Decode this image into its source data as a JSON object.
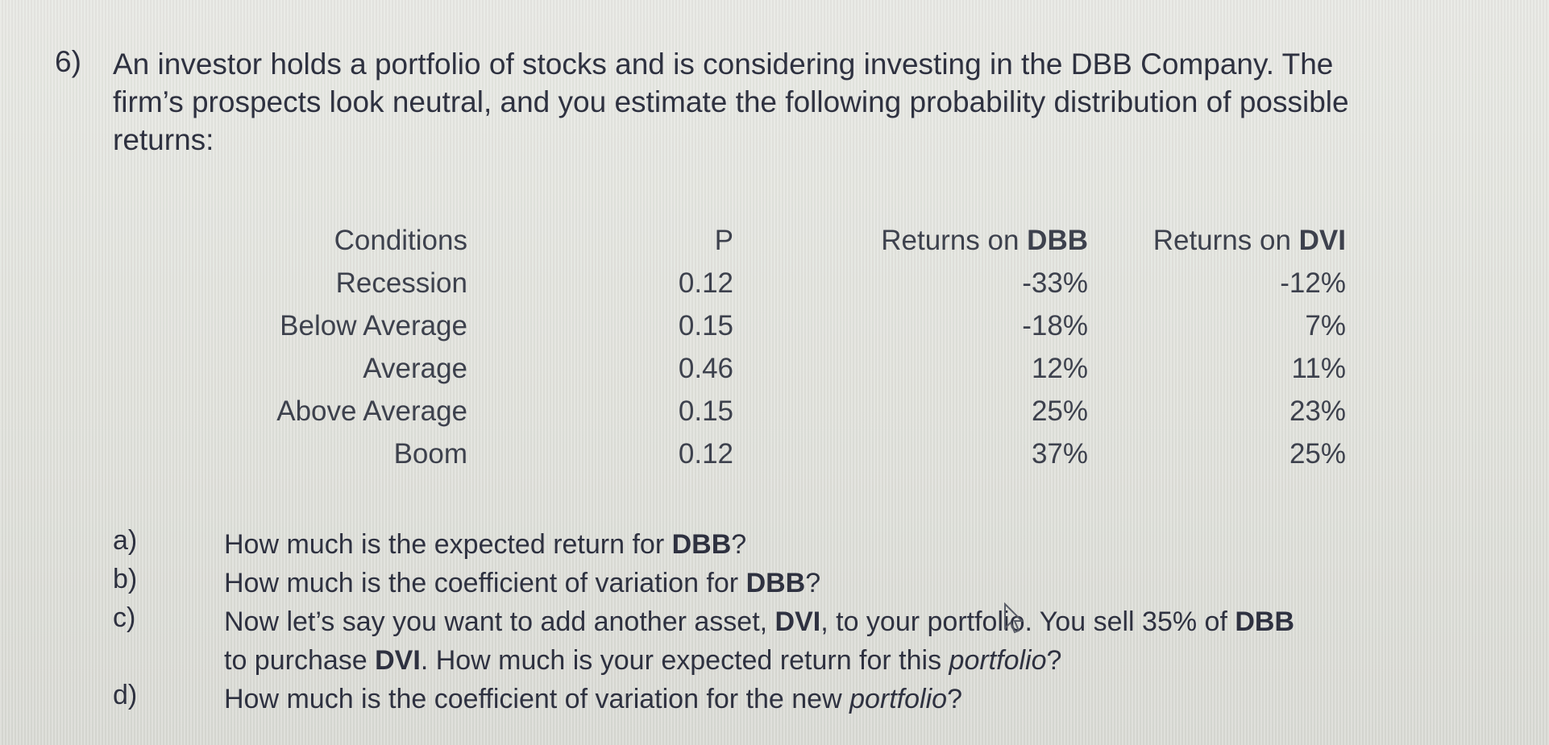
{
  "question": {
    "number": "6)",
    "lines": [
      "An investor holds a portfolio of stocks and is considering investing in the DBB Company.  The",
      "firm’s prospects look neutral, and you estimate the following probability distribution of possible",
      "returns:"
    ]
  },
  "table": {
    "headers": {
      "conditions": "Conditions",
      "p": "P",
      "dbb_prefix": "Returns on ",
      "dbb_name": "DBB",
      "dvi_prefix": "Returns on ",
      "dvi_name": "DVI"
    },
    "rows": [
      {
        "condition": "Recession",
        "p": "0.12",
        "dbb": "-33%",
        "dvi": "-12%"
      },
      {
        "condition": "Below Average",
        "p": "0.15",
        "dbb": "-18%",
        "dvi": "7%"
      },
      {
        "condition": "Average",
        "p": "0.46",
        "dbb": "12%",
        "dvi": "11%"
      },
      {
        "condition": "Above Average",
        "p": "0.15",
        "dbb": "25%",
        "dvi": "23%"
      },
      {
        "condition": "Boom",
        "p": "0.12",
        "dbb": "37%",
        "dvi": "25%"
      }
    ]
  },
  "parts": {
    "a": {
      "label": "a)",
      "t1": "How much is the expected return for ",
      "b1": "DBB",
      "t2": "?"
    },
    "b": {
      "label": "b)",
      "t1": "How much is the coefficient of variation for ",
      "b1": "DBB",
      "t2": "?"
    },
    "c": {
      "label": "c)",
      "l1_t1": "Now let’s say you want to add another asset, ",
      "l1_b1": "DVI",
      "l1_t2": ", to your portfolio.  You sell 35% of ",
      "l1_b2": "DBB",
      "l2_t1": "to purchase ",
      "l2_b1": "DVI",
      "l2_t2": ".  How much is your expected return for this ",
      "l2_i1": "portfolio",
      "l2_t3": "?"
    },
    "d": {
      "label": "d)",
      "t1": "How much is the coefficient of variation for the new ",
      "i1": "portfolio",
      "t2": "?"
    }
  },
  "icons": {
    "cursor": "mouse-pointer-icon"
  }
}
